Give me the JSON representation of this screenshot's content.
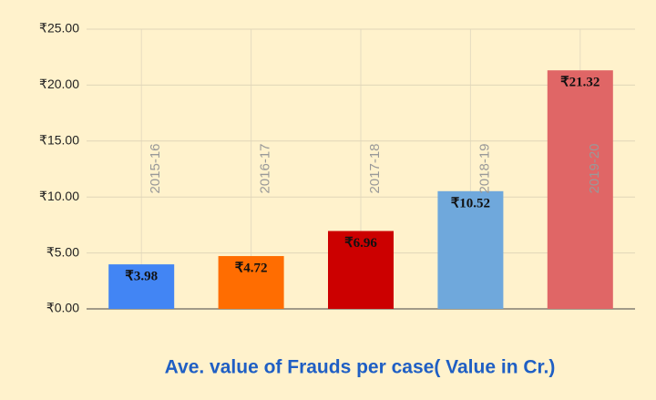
{
  "chart_data": {
    "type": "bar",
    "title": "Ave. value of Frauds per case( Value in Cr.)",
    "categories": [
      "2015-16",
      "2016-17",
      "2017-18",
      "2018-19",
      "2019-20"
    ],
    "values": [
      3.98,
      4.72,
      6.96,
      10.52,
      21.32
    ],
    "value_labels": [
      "₹3.98",
      "₹4.72",
      "₹6.96",
      "₹10.52",
      "₹21.32"
    ],
    "colors": [
      "#4285f4",
      "#ff6d01",
      "#cc0000",
      "#6fa8dc",
      "#e06666"
    ],
    "ylim": [
      0,
      25
    ],
    "yticks": [
      {
        "value": 0,
        "label": "₹0.00"
      },
      {
        "value": 5,
        "label": "₹5.00"
      },
      {
        "value": 10,
        "label": "₹10.00"
      },
      {
        "value": 15,
        "label": "₹15.00"
      },
      {
        "value": 20,
        "label": "₹20.00"
      },
      {
        "value": 25,
        "label": "₹25.00"
      }
    ],
    "grid": true
  }
}
